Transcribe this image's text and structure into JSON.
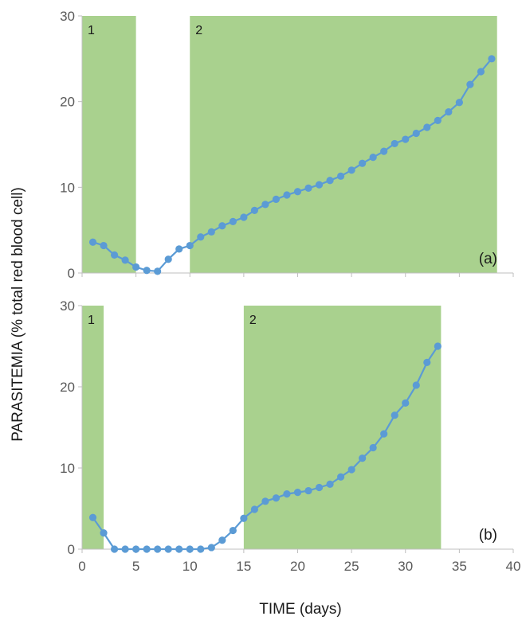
{
  "chart_data": {
    "type": "line",
    "ylabel": "PARASITEMIA (% total red blood cell)",
    "xlabel": "TIME (days)",
    "x_ticks": [
      "0",
      "5",
      "10",
      "15",
      "20",
      "25",
      "30",
      "35",
      "40"
    ],
    "y_ticks": [
      "0",
      "10",
      "20",
      "30"
    ],
    "xlim": [
      0,
      40
    ],
    "ylim": [
      0,
      30
    ],
    "grid": false,
    "colors": {
      "band": "#a9d18e",
      "line": "#5b9bd5"
    },
    "panels": [
      {
        "label": "(a)",
        "bands": [
          {
            "label": "1",
            "x_start": 0,
            "x_end": 5
          },
          {
            "label": "2",
            "x_start": 10,
            "x_end": 38.5
          }
        ],
        "series": [
          {
            "x": [
              1,
              2,
              3,
              4,
              5,
              6,
              7,
              8,
              9,
              10,
              11,
              12,
              13,
              14,
              15,
              16,
              17,
              18,
              19,
              20,
              21,
              22,
              23,
              24,
              25,
              26,
              27,
              28,
              29,
              30,
              31,
              32,
              33,
              34,
              35,
              36,
              37,
              38
            ],
            "y": [
              3.6,
              3.2,
              2.1,
              1.5,
              0.7,
              0.3,
              0.2,
              1.6,
              2.8,
              3.2,
              4.2,
              4.8,
              5.5,
              6.0,
              6.5,
              7.3,
              8.0,
              8.6,
              9.1,
              9.5,
              9.9,
              10.3,
              10.8,
              11.3,
              12.0,
              12.8,
              13.5,
              14.2,
              15.1,
              15.6,
              16.3,
              17.0,
              17.8,
              18.8,
              19.9,
              22.0,
              23.5,
              25.0
            ]
          }
        ]
      },
      {
        "label": "(b)",
        "bands": [
          {
            "label": "1",
            "x_start": 0,
            "x_end": 2
          },
          {
            "label": "2",
            "x_start": 15,
            "x_end": 33.3
          }
        ],
        "series": [
          {
            "x": [
              1,
              2,
              3,
              4,
              5,
              6,
              7,
              8,
              9,
              10,
              11,
              12,
              13,
              14,
              15,
              16,
              17,
              18,
              19,
              20,
              21,
              22,
              23,
              24,
              25,
              26,
              27,
              28,
              29,
              30,
              31,
              32,
              33
            ],
            "y": [
              3.9,
              2.0,
              0,
              0,
              0,
              0,
              0,
              0,
              0,
              0,
              0,
              0.2,
              1.1,
              2.3,
              3.8,
              4.9,
              5.9,
              6.3,
              6.8,
              7.0,
              7.2,
              7.6,
              8.0,
              8.9,
              9.8,
              11.2,
              12.5,
              14.2,
              16.5,
              18.0,
              20.2,
              23.0,
              25.0
            ]
          }
        ]
      }
    ]
  }
}
